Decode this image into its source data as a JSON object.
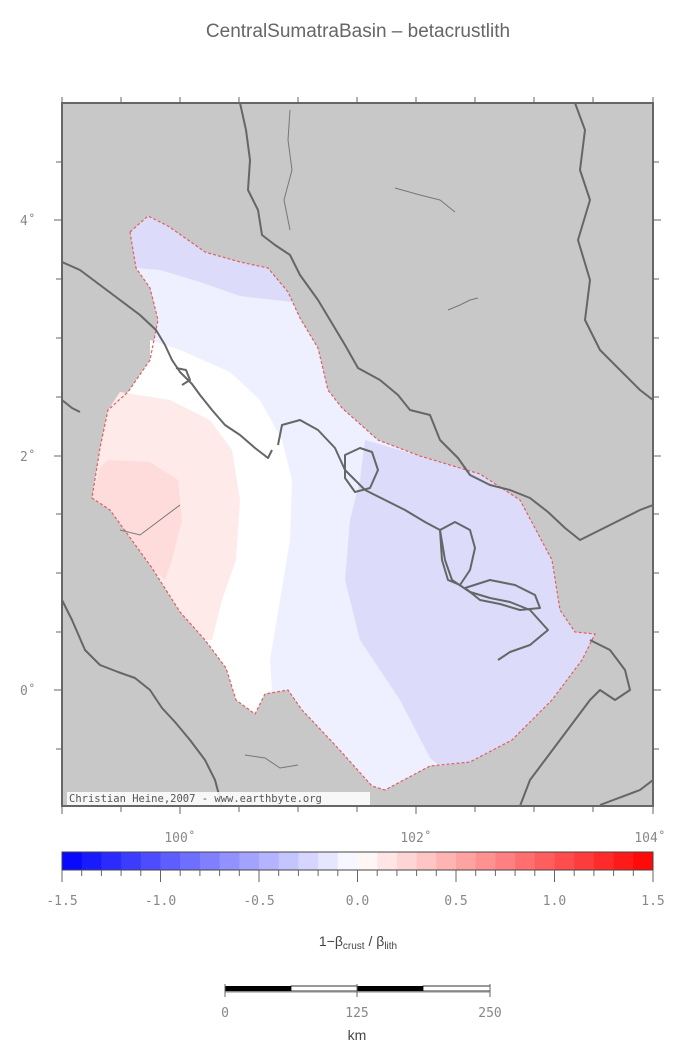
{
  "title": "CentralSumatraBasin – betacrustlith",
  "credit": "Christian Heine,2007 - www.earthbyte.org",
  "map": {
    "longitude_ticks": [
      "100˚",
      "102˚",
      "104˚"
    ],
    "latitude_ticks": [
      "4˚",
      "2˚",
      "0˚"
    ],
    "land_color": "#c8c8c8",
    "coast_color": "#666666",
    "basin_outline_color": "#e06060"
  },
  "colorbar": {
    "tick_labels": [
      "-1.5",
      "-1.0",
      "-0.5",
      "0.0",
      "0.5",
      "1.0",
      "1.5"
    ],
    "label_main": "1−β",
    "label_sub1": "crust",
    "label_sep": " / β",
    "label_sub2": "lith",
    "colors": [
      "#0000ff",
      "#ffffff",
      "#ff0000"
    ]
  },
  "scalebar": {
    "labels": [
      "0",
      "125",
      "250"
    ],
    "unit": "km"
  }
}
